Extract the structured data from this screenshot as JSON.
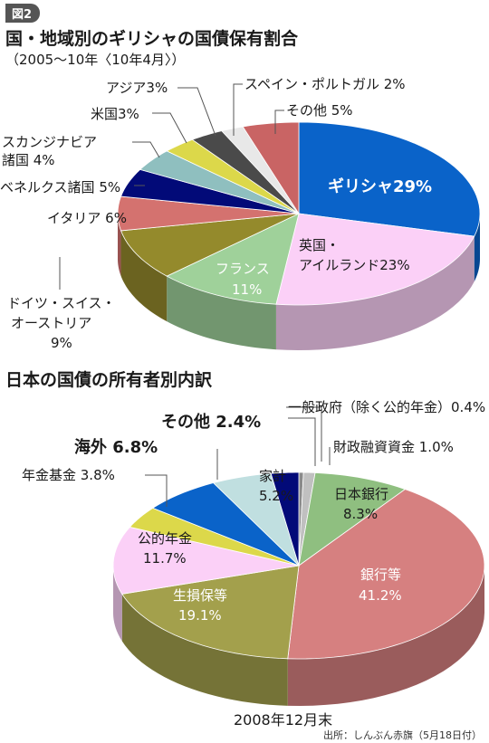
{
  "figure_label": "図2",
  "main_title": "国・地域別のギリシャの国債保有割合",
  "sub_title": "（2005〜10年〈10年4月〉）",
  "chart2_title": "日本の国債の所有者別内訳",
  "date_label": "2008年12月末",
  "source_note": "出所：しんぶん赤旗（5月18日付）",
  "chart_data": [
    {
      "type": "pie",
      "title": "国・地域別のギリシャの国債保有割合",
      "subtitle": "（2005〜10年〈10年4月〉）",
      "slices": [
        {
          "label": "ギリシャ29%",
          "value": 29,
          "color": "#0a63c9"
        },
        {
          "label": "英国・アイルランド23%",
          "value": 23,
          "color": "#fbd0f7"
        },
        {
          "label": "フランス11%",
          "value": 11,
          "color": "#9fd19a"
        },
        {
          "label": "ドイツ・スイス・オーストリア9%",
          "value": 9,
          "color": "#948a2c"
        },
        {
          "label": "イタリア 6%",
          "value": 6,
          "color": "#d4726f"
        },
        {
          "label": "ベネルクス諸国 5%",
          "value": 5,
          "color": "#020a78"
        },
        {
          "label": "スカンジナビア諸国 4%",
          "value": 4,
          "color": "#8fbfbf"
        },
        {
          "label": "米国3%",
          "value": 3,
          "color": "#dcd84a"
        },
        {
          "label": "アジア3%",
          "value": 3,
          "color": "#4a4a4a"
        },
        {
          "label": "スペイン・ポルトガル 2%",
          "value": 2,
          "color": "#e8e8e8"
        },
        {
          "label": "その他 5%",
          "value": 5,
          "color": "#c96464"
        }
      ]
    },
    {
      "type": "pie",
      "title": "日本の国債の所有者別内訳",
      "note": "2008年12月末",
      "slices": [
        {
          "label": "一般政府（除く公的年金）0.4%",
          "value": 0.4,
          "color": "#8a8a8a"
        },
        {
          "label": "財政融資資金 1.0%",
          "value": 1.0,
          "color": "#c0c0c0"
        },
        {
          "label": "日本銀行 8.3%",
          "value": 8.3,
          "color": "#8fbf80"
        },
        {
          "label": "銀行等 41.2%",
          "value": 41.2,
          "color": "#d68080"
        },
        {
          "label": "生損保等 19.1%",
          "value": 19.1,
          "color": "#a3a04c"
        },
        {
          "label": "公的年金 11.7%",
          "value": 11.7,
          "color": "#fbd0f7"
        },
        {
          "label": "年金基金 3.8%",
          "value": 3.8,
          "color": "#dcd84a"
        },
        {
          "label": "海外 6.8%",
          "value": 6.8,
          "color": "#0a63c9"
        },
        {
          "label": "家計 5.2%",
          "value": 5.2,
          "color": "#c0dfe0"
        },
        {
          "label": "その他 2.4%",
          "value": 2.4,
          "color": "#020a78"
        }
      ]
    }
  ],
  "labels1": {
    "greece": "ギリシャ29%",
    "uk_1": "英国・",
    "uk_2": "アイルランド23%",
    "france_1": "フランス",
    "france_2": "11%",
    "germany_1": "ドイツ・スイス・",
    "germany_2": "オーストリア",
    "germany_3": "9%",
    "italy": "イタリア 6%",
    "benelux": "ベネルクス諸国 5%",
    "scand_1": "スカンジナビア",
    "scand_2": "諸国 4%",
    "us": "米国3%",
    "asia": "アジア3%",
    "spain": "スペイン・ポルトガル 2%",
    "other": "その他 5%"
  },
  "labels2": {
    "govt": "一般政府（除く公的年金）0.4%",
    "filp": "財政融資資金 1.0%",
    "boj_1": "日本銀行",
    "boj_2": "8.3%",
    "banks_1": "銀行等",
    "banks_2": "41.2%",
    "insurance_1": "生損保等",
    "insurance_2": "19.1%",
    "pension_1": "公的年金",
    "pension_2": "11.7%",
    "fund": "年金基金 3.8%",
    "foreign": "海外 6.8%",
    "household_1": "家計",
    "household_2": "5.2%",
    "other": "その他 2.4%"
  }
}
